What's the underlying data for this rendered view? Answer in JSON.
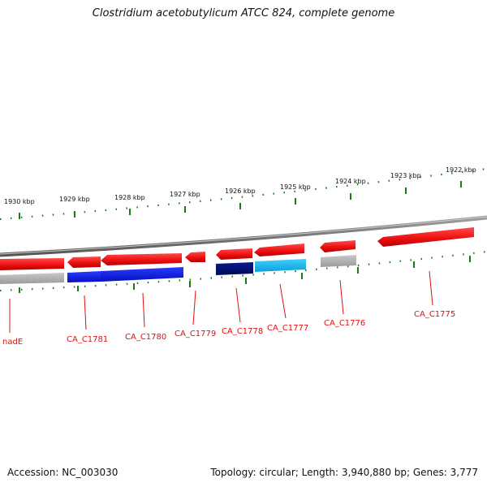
{
  "title": "Clostridium acetobutylicum ATCC 824, complete genome",
  "footer": {
    "accession": "Accession: NC_003030",
    "topology": "Topology: circular; Length: 3,940,880 bp; Genes: 3,777"
  },
  "scale": {
    "labels": [
      "1930 kbp",
      "1929 kbp",
      "1928 kbp",
      "1927 kbp",
      "1926 kbp",
      "1925 kbp",
      "1924 kbp",
      "1923 kbp",
      "1922 kbp"
    ]
  },
  "genes": {
    "labels": [
      "nadE",
      "CA_C1781",
      "CA_C1780",
      "CA_C1779",
      "CA_C1778",
      "CA_C1777",
      "CA_C1776",
      "CA_C1775"
    ]
  },
  "colors": {
    "backbone": "#7a7a7a",
    "forward_feature": "#ee1111",
    "reverse_blue": "#0a18e0",
    "reverse_navy": "#001070",
    "reverse_cyan": "#1ab8ee",
    "reverse_gray": "#aaaaaa",
    "tick": "#1a7a1a",
    "label": "#e01010"
  }
}
